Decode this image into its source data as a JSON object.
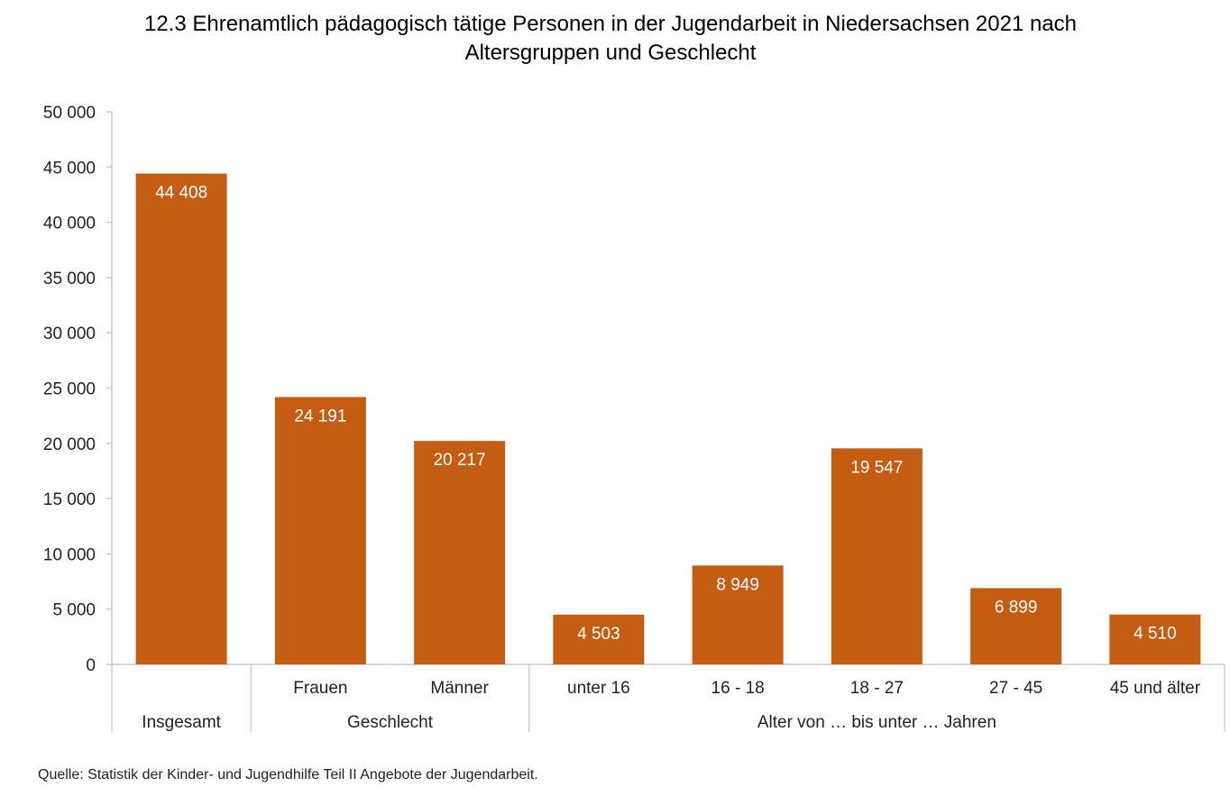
{
  "chart_data": {
    "type": "bar",
    "title_lines": [
      "12.3 Ehrenamtlich pädagogisch tätige Personen in der Jugendarbeit in Niedersachsen 2021 nach",
      "Altersgruppen und Geschlecht"
    ],
    "categories": [
      "",
      "Frauen",
      "Männer",
      "unter 16",
      "16 - 18",
      "18 - 27",
      "27 - 45",
      "45 und älter"
    ],
    "values": [
      44408,
      24191,
      20217,
      4503,
      8949,
      19547,
      6899,
      4510
    ],
    "value_labels": [
      "44 408",
      "24 191",
      "20 217",
      "4 503",
      "8 949",
      "19 547",
      "6 899",
      "4 510"
    ],
    "groups": [
      {
        "label": "Insgesamt",
        "span": 1
      },
      {
        "label": "Geschlecht",
        "span": 2
      },
      {
        "label": "Alter von … bis unter … Jahren",
        "span": 5
      }
    ],
    "yticks": [
      0,
      5000,
      10000,
      15000,
      20000,
      25000,
      30000,
      35000,
      40000,
      45000,
      50000
    ],
    "ytick_labels": [
      "0",
      "5 000",
      "10 000",
      "15 000",
      "20 000",
      "25 000",
      "30 000",
      "35 000",
      "40 000",
      "45 000",
      "50 000"
    ],
    "ylim": [
      0,
      50000
    ],
    "xlabel": "",
    "ylabel": "",
    "grid": false,
    "bar_color": "#C45C12"
  },
  "source": "Quelle: Statistik der Kinder- und Jugendhilfe Teil II Angebote der Jugendarbeit."
}
